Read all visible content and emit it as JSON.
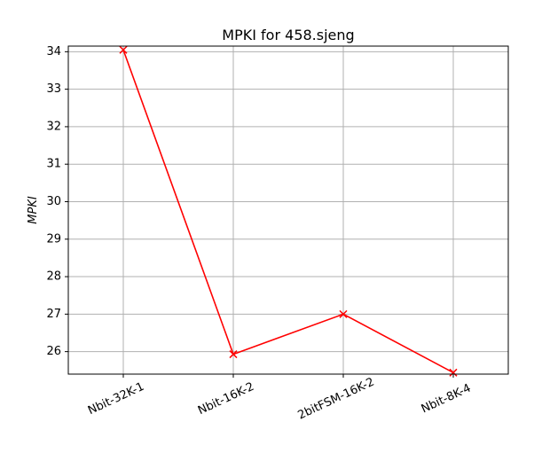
{
  "chart_data": {
    "type": "line",
    "title": "MPKI for 458.sjeng",
    "xlabel": "",
    "ylabel": "MPKI",
    "categories": [
      "Nbit-32K-1",
      "Nbit-16K-2",
      "2bitFSM-16K-2",
      "Nbit-8K-4"
    ],
    "series": [
      {
        "values": [
          34.05,
          25.93,
          27.0,
          25.44
        ],
        "color": "#ff0000",
        "marker": "x"
      }
    ],
    "ylim": [
      25.4,
      34.15
    ],
    "yticks": [
      26,
      27,
      28,
      29,
      30,
      31,
      32,
      33,
      34
    ],
    "grid": true,
    "x_tick_rotation": "rotated"
  }
}
